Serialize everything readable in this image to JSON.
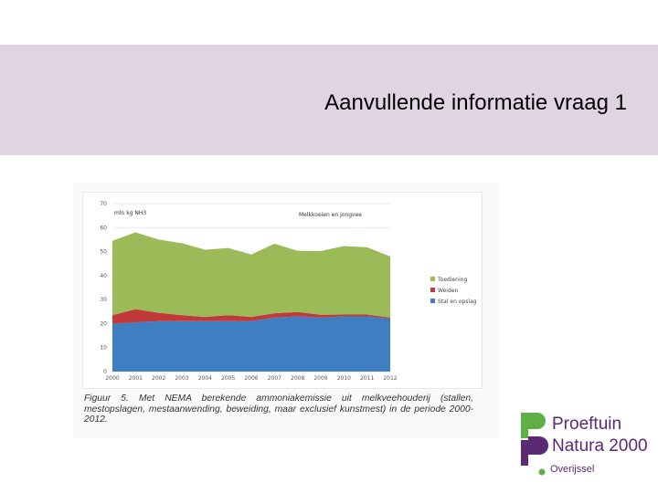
{
  "slide": {
    "title": "Aanvullende informatie vraag 1"
  },
  "figure": {
    "caption": "Figuur 5. Met NEMA berekende ammoniakemissie uit melkveehouderij (stallen, mestopslagen, mestaanwending, beweiding, maar exclusief kunstmest) in de periode 2000-2012."
  },
  "chart_data": {
    "type": "area",
    "stacked": true,
    "title": "Melkkoeien en jongvee",
    "ylabel": "mln kg NH3",
    "xlabel": "",
    "x": [
      "2000",
      "2001",
      "2002",
      "2003",
      "2004",
      "2005",
      "2006",
      "2007",
      "2008",
      "2009",
      "2010",
      "2011",
      "2012"
    ],
    "ylim": [
      0,
      70
    ],
    "yticks": [
      0,
      10,
      20,
      30,
      40,
      50,
      60,
      70
    ],
    "grid": true,
    "legend_position": "right",
    "series": [
      {
        "name": "Stal en opslag",
        "color": "#3f7fc1",
        "values": [
          20,
          20.5,
          21,
          21,
          21,
          21,
          21,
          22.5,
          23,
          22.5,
          23,
          23,
          22
        ]
      },
      {
        "name": "Weiden",
        "color": "#c0393b",
        "values": [
          3.5,
          5.5,
          3.5,
          2.5,
          1.8,
          2.5,
          1.8,
          1.8,
          1.8,
          1.2,
          0.8,
          0.8,
          0.5
        ]
      },
      {
        "name": "Toediening",
        "color": "#9bbb59",
        "values": [
          31,
          32,
          30.5,
          30,
          28,
          28,
          26,
          29,
          25.5,
          26.5,
          28.5,
          28,
          25.5
        ]
      }
    ]
  },
  "logo": {
    "line1": "Proeftuin",
    "line2": "Natura 2000",
    "line3": "Overijssel"
  }
}
